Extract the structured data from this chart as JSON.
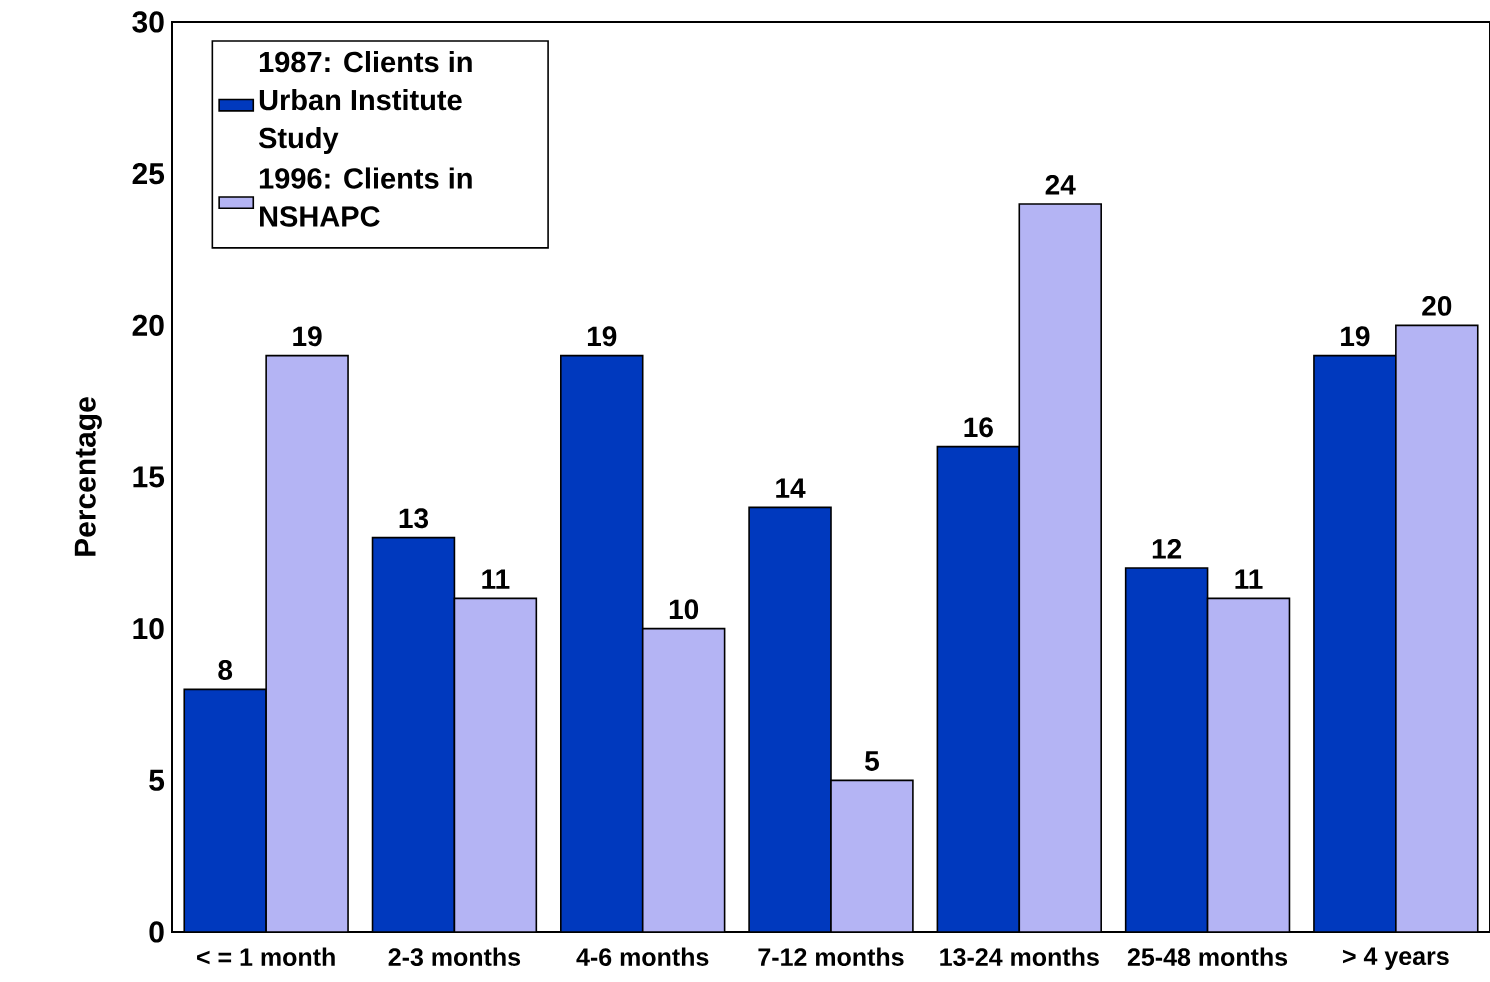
{
  "chart_data": {
    "type": "bar",
    "ylabel": "Percentage",
    "categories": [
      "< = 1 month",
      "2-3 months",
      "4-6 months",
      "7-12 months",
      "13-24 months",
      "25-48 months",
      "> 4 years"
    ],
    "series": [
      {
        "name": "1987: Clients in Urban Institute Study",
        "color": "#0039be",
        "values": [
          8,
          13,
          19,
          14,
          16,
          12,
          19
        ]
      },
      {
        "name": "1996: Clients in NSHAPC",
        "color": "#b4b4f4",
        "values": [
          19,
          11,
          10,
          5,
          24,
          11,
          20
        ]
      }
    ],
    "ylim": [
      0,
      30
    ],
    "yticks": [
      0,
      5,
      10,
      15,
      20,
      25,
      30
    ],
    "data_labels": true,
    "legend": "top left",
    "grid": false
  }
}
